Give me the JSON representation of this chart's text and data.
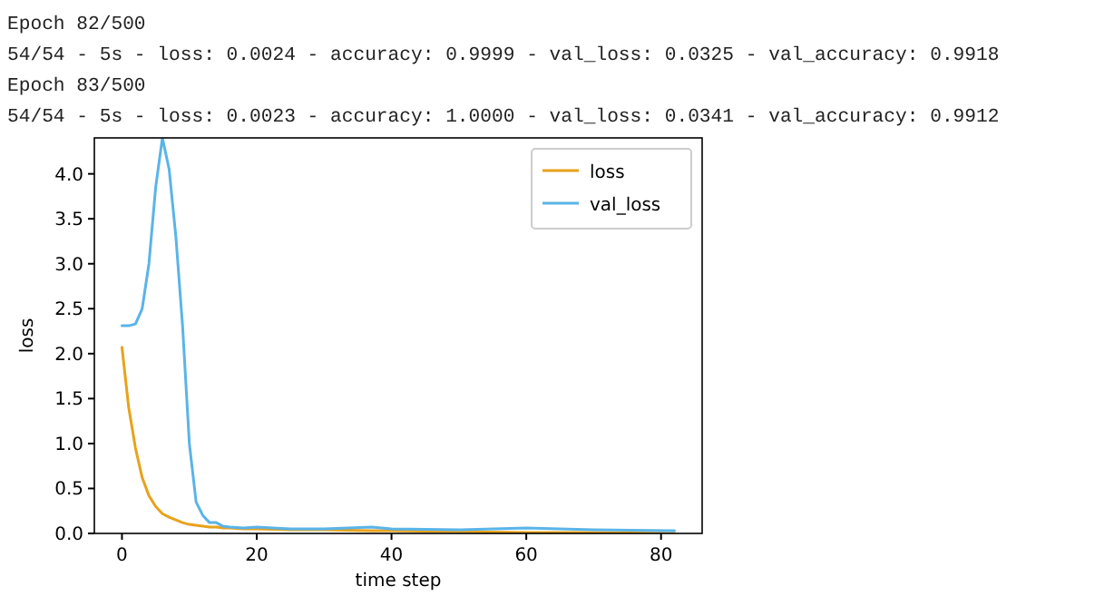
{
  "chart_data": {
    "type": "line",
    "xlabel": "time step",
    "ylabel": "loss",
    "annotations": [
      "Epoch 82/500",
      "54/54 - 5s - loss: 0.0024 - accuracy: 0.9999 - val_loss: 0.0325 - val_accuracy: 0.9918",
      "Epoch 83/500",
      "54/54 - 5s - loss: 0.0023 - accuracy: 1.0000 - val_loss: 0.0341 - val_accuracy: 0.9912"
    ],
    "x": [
      0,
      1,
      2,
      3,
      4,
      5,
      6,
      7,
      8,
      9,
      10,
      11,
      12,
      13,
      14,
      15,
      16,
      18,
      20,
      25,
      30,
      37,
      40,
      50,
      60,
      70,
      81,
      82
    ],
    "series": [
      {
        "name": "loss",
        "color": "#e8a21c",
        "values": [
          2.07,
          1.4,
          0.95,
          0.62,
          0.42,
          0.3,
          0.22,
          0.18,
          0.15,
          0.12,
          0.1,
          0.09,
          0.08,
          0.07,
          0.07,
          0.06,
          0.06,
          0.05,
          0.05,
          0.04,
          0.04,
          0.03,
          0.03,
          0.02,
          0.01,
          0.01,
          0,
          0
        ]
      },
      {
        "name": "val_loss",
        "color": "#5ab4e8",
        "values": [
          2.31,
          2.31,
          2.33,
          2.5,
          3.0,
          3.85,
          4.4,
          4.05,
          3.3,
          2.3,
          1.0,
          0.35,
          0.2,
          0.12,
          0.12,
          0.08,
          0.07,
          0.06,
          0.07,
          0.05,
          0.05,
          0.07,
          0.05,
          0.04,
          0.06,
          0.04,
          0.03,
          0.03
        ]
      }
    ],
    "xlim": [
      -4.1,
      86.1
    ],
    "ylim": [
      0,
      4.4
    ],
    "xticks": [
      0,
      20,
      40,
      60,
      80
    ],
    "yticks": [
      {
        "value": 0,
        "label": "0.0"
      },
      {
        "value": 0.5,
        "label": "0.5"
      },
      {
        "value": 1,
        "label": "1.0"
      },
      {
        "value": 1.5,
        "label": "1.5"
      },
      {
        "value": 2,
        "label": "2.0"
      },
      {
        "value": 2.5,
        "label": "2.5"
      },
      {
        "value": 3,
        "label": "3.0"
      },
      {
        "value": 3.5,
        "label": "3.5"
      },
      {
        "value": 4,
        "label": "4.0"
      }
    ],
    "grid": false,
    "legend": "top right",
    "marker": "none",
    "line_style": "solid"
  }
}
